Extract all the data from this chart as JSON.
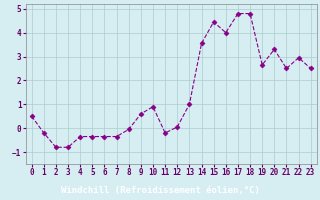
{
  "x": [
    0,
    1,
    2,
    3,
    4,
    5,
    6,
    7,
    8,
    9,
    10,
    11,
    12,
    13,
    14,
    15,
    16,
    17,
    18,
    19,
    20,
    21,
    22,
    23
  ],
  "y": [
    0.5,
    -0.2,
    -0.8,
    -0.8,
    -0.35,
    -0.35,
    -0.35,
    -0.35,
    -0.05,
    0.6,
    0.9,
    -0.2,
    0.05,
    1.0,
    3.55,
    4.45,
    4.0,
    4.8,
    4.8,
    2.65,
    3.3,
    2.5,
    2.95,
    2.5
  ],
  "line_color": "#880088",
  "marker": "D",
  "markersize": 2.5,
  "bg_color": "#d6eef2",
  "grid_color": "#aacccc",
  "xlabel": "Windchill (Refroidissement éolien,°C)",
  "xlabel_bg": "#660066",
  "xlabel_fg": "#ffffff",
  "ylabel": "",
  "xlim": [
    -0.5,
    23.5
  ],
  "ylim": [
    -1.5,
    5.2
  ],
  "yticks": [
    -1,
    0,
    1,
    2,
    3,
    4,
    5
  ],
  "xticks": [
    0,
    1,
    2,
    3,
    4,
    5,
    6,
    7,
    8,
    9,
    10,
    11,
    12,
    13,
    14,
    15,
    16,
    17,
    18,
    19,
    20,
    21,
    22,
    23
  ],
  "tick_fontsize": 5.5,
  "xlabel_fontsize": 6.5,
  "linewidth": 0.8,
  "tick_color": "#660066",
  "spine_color": "#888888"
}
